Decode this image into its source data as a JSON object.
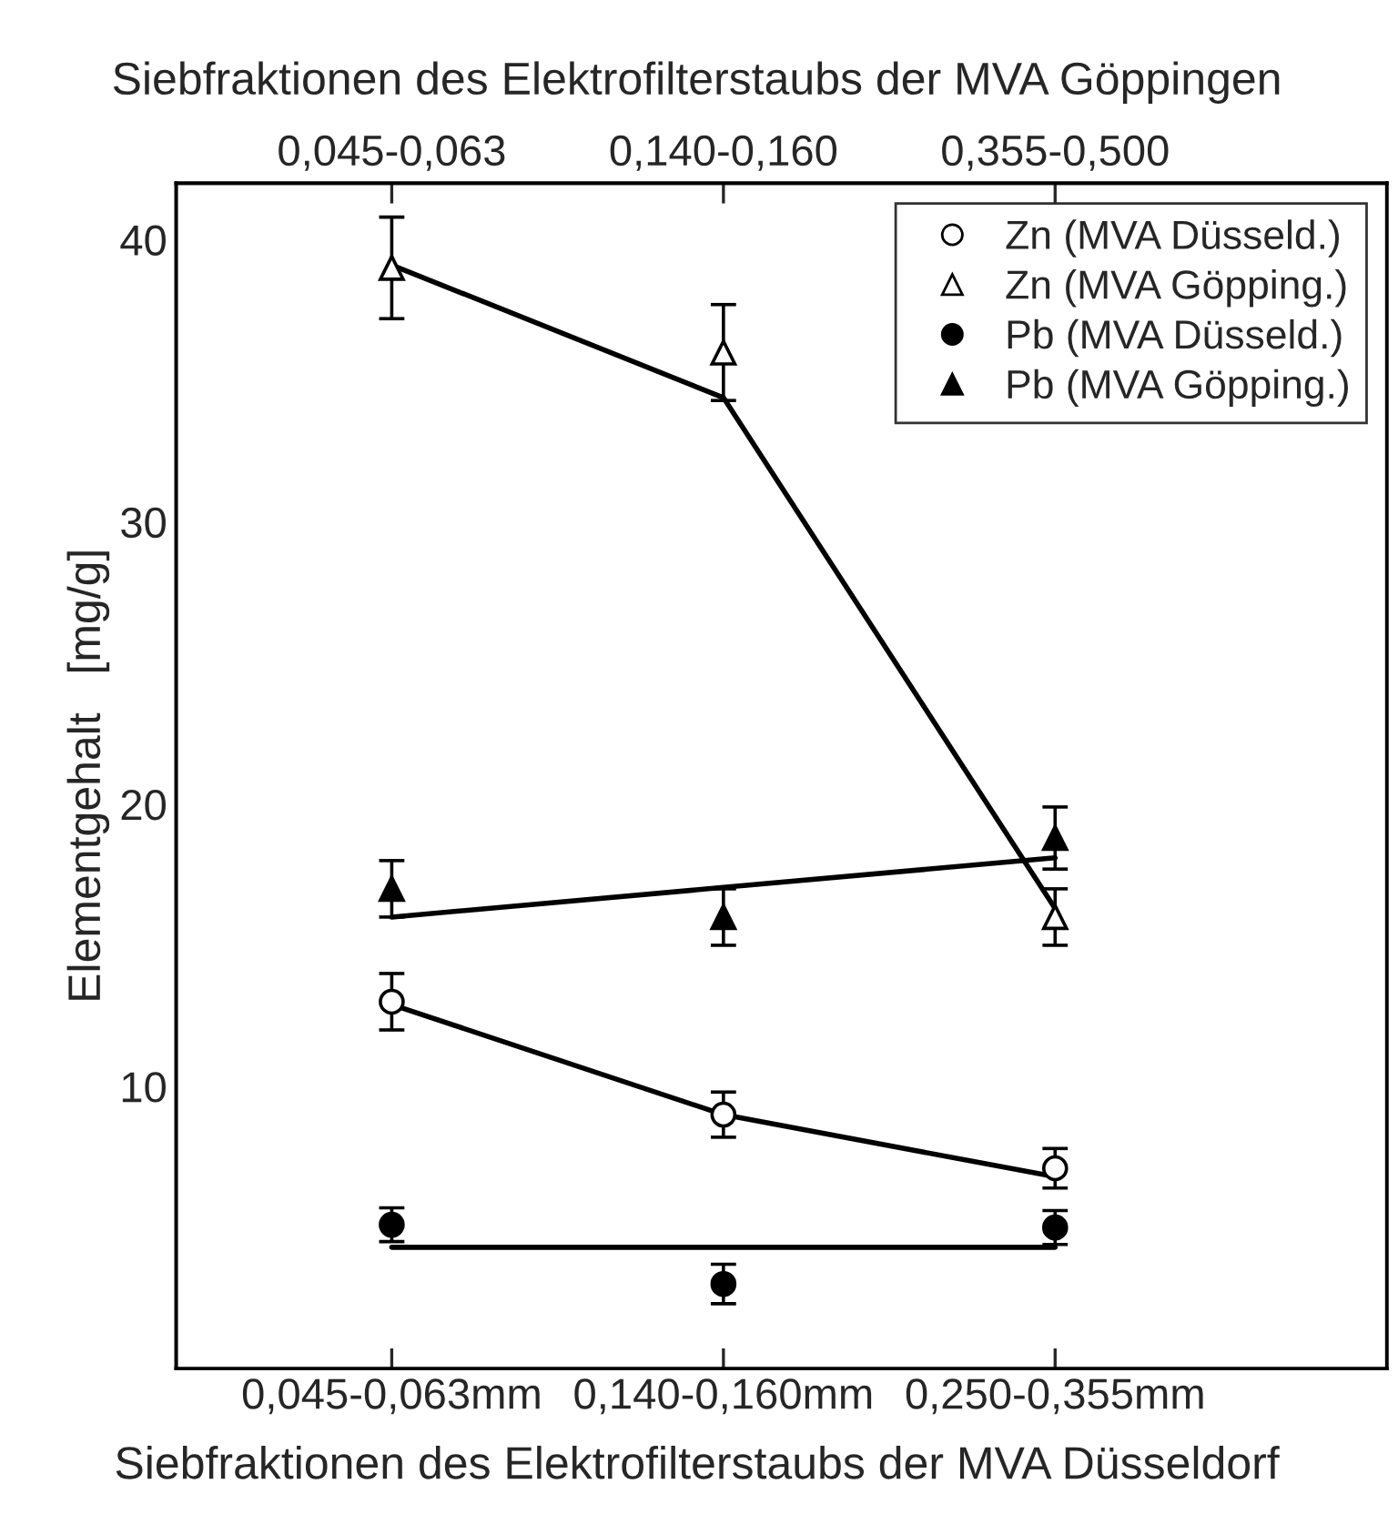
{
  "chart_data": {
    "type": "scatter",
    "xlabel": "Siebfraktionen des Elektrofilterstaubs der MVA Düsseldorf",
    "x2label": "Siebfraktionen des Elektrofilterstaubs der MVA Göppingen",
    "ylabel": "Elementgehalt   [mg/g]",
    "categories": [
      "0,045-0,063mm",
      "0,140-0,160mm",
      "0,250-0,355mm"
    ],
    "annotations": [
      {
        "text": "0,045-0,063",
        "x": "0,045-0,063mm"
      },
      {
        "text": "0,140-0,160",
        "x": "0,140-0,160mm"
      },
      {
        "text": "0,355-0,500",
        "x": "0,250-0,355mm"
      }
    ],
    "ylim": [
      0,
      42
    ],
    "yticks": [
      10,
      20,
      30,
      40
    ],
    "legend": "top right",
    "series": [
      {
        "name": "Zn (MVA Düsseld.)",
        "marker": "circle",
        "color": "#ffffff",
        "values": [
          13,
          9,
          7.1
        ],
        "errors": [
          1,
          0.8,
          0.7
        ]
      },
      {
        "name": "Zn (MVA Göpping.)",
        "marker": "triangle",
        "color": "#ffffff",
        "values": [
          39,
          36,
          16
        ],
        "errors": [
          1.8,
          1.7,
          1
        ]
      },
      {
        "name": "Pb (MVA Düsseld.)",
        "marker": "circle",
        "color": "#000000",
        "values": [
          5.1,
          3,
          5
        ],
        "errors": [
          0.6,
          0.7,
          0.6
        ]
      },
      {
        "name": "Pb (MVA Göpping.)",
        "marker": "triangle",
        "color": "#000000",
        "values": [
          17,
          16,
          18.8
        ],
        "errors": [
          1,
          1,
          1.1
        ]
      },
      {
        "type": "line",
        "marker": "none",
        "color": "#000000",
        "values": [
          39.1,
          34.4,
          16.3
        ]
      },
      {
        "type": "line",
        "marker": "none",
        "color": "#000000",
        "values": [
          16.0,
          17.05,
          18.1
        ]
      },
      {
        "type": "line",
        "marker": "none",
        "color": "#000000",
        "values": [
          12.9,
          9.0,
          6.8
        ]
      },
      {
        "type": "line",
        "marker": "none",
        "color": "#000000",
        "values": [
          4.3,
          4.3,
          4.3
        ]
      }
    ]
  }
}
